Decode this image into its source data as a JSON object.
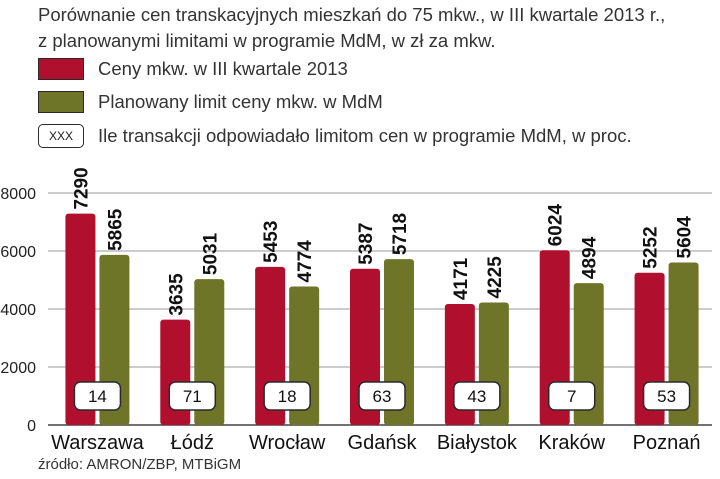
{
  "title_lines": [
    "Porównanie cen transkacyjnych mieszkań do 75 mkw., w III kwartale 2013 r.,",
    "z planowanymi limitami w programie MdM, w zł za mkw."
  ],
  "legend": {
    "series1": "Ceny mkw. w III kwartale 2013",
    "series2": "Planowany limit ceny mkw. w MdM",
    "box_marker": "XXX",
    "box_label": "Ile transakcji odpowiadało limitom cen w programie MdM, w proc."
  },
  "source": "źródło: AMRON/ZBP, MTBiGM",
  "colors": {
    "series1": "#b0102e",
    "series2": "#6e7428",
    "grid": "#9a9a9a"
  },
  "chart_data": {
    "type": "bar",
    "categories": [
      "Warszawa",
      "Łódź",
      "Wrocław",
      "Gdańsk",
      "Białystok",
      "Kraków",
      "Poznań"
    ],
    "series": [
      {
        "name": "Ceny mkw. w III kwartale 2013",
        "values": [
          7290,
          3635,
          5453,
          5387,
          4171,
          6024,
          5252
        ]
      },
      {
        "name": "Planowany limit ceny mkw. w MdM",
        "values": [
          5865,
          5031,
          4774,
          5718,
          4225,
          4894,
          5604
        ]
      }
    ],
    "box_values": [
      "14",
      "71",
      "18",
      "63",
      "43",
      "7",
      "53"
    ],
    "yticks": [
      0,
      2000,
      4000,
      6000,
      8000
    ],
    "ylim": [
      0,
      8000
    ],
    "grid": true
  }
}
